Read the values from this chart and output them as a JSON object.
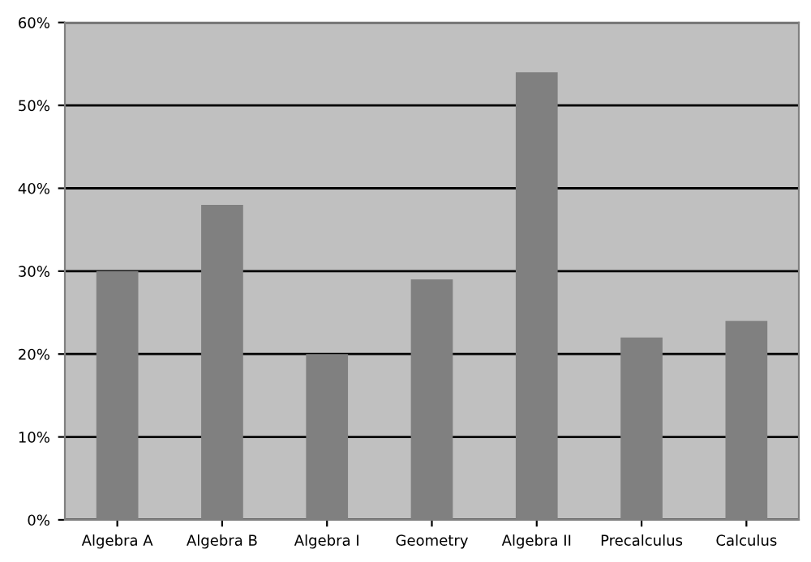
{
  "chart_data": {
    "type": "bar",
    "categories": [
      "Algebra A",
      "Algebra B",
      "Algebra I",
      "Geometry",
      "Algebra II",
      "Precalculus",
      "Calculus"
    ],
    "values": [
      30,
      38,
      20,
      29,
      54,
      22,
      24
    ],
    "color": "#808080",
    "ylim": [
      0,
      60
    ],
    "yticks": [
      {
        "value": 0,
        "label": "0%"
      },
      {
        "value": 10,
        "label": "10%"
      },
      {
        "value": 20,
        "label": "20%"
      },
      {
        "value": 30,
        "label": "30%"
      },
      {
        "value": 40,
        "label": "40%"
      },
      {
        "value": 50,
        "label": "50%"
      },
      {
        "value": 60,
        "label": "60%"
      }
    ],
    "grid": "y"
  }
}
